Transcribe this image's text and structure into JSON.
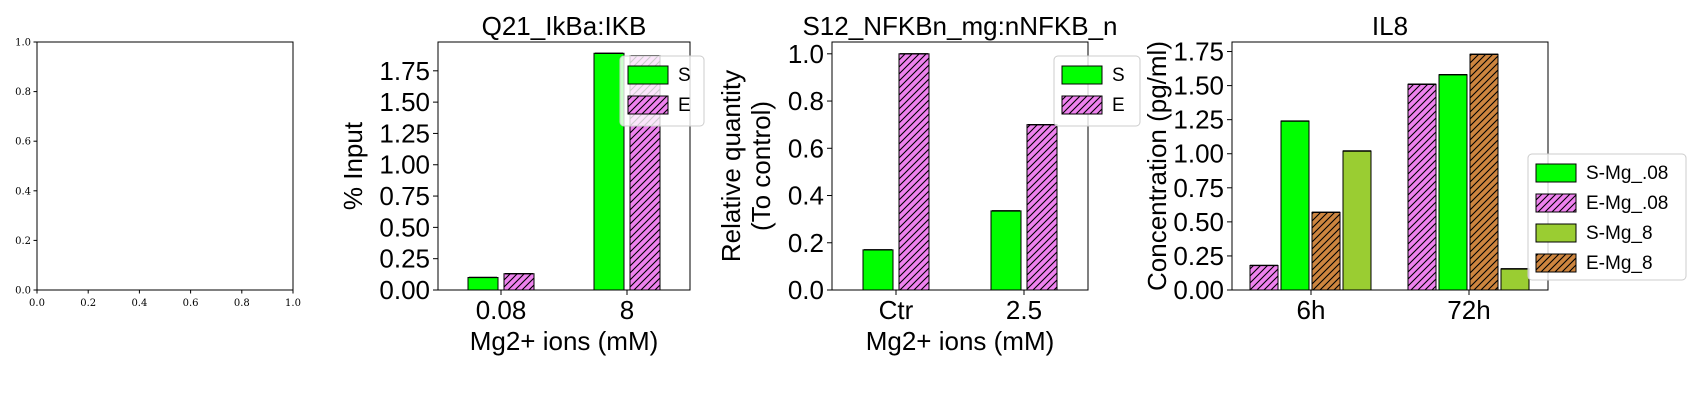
{
  "charts": [
    {
      "id": "empty",
      "type": "empty",
      "xlim": [
        0,
        1
      ],
      "ylim": [
        0,
        1
      ],
      "xticks": [
        "0.0",
        "0.2",
        "0.4",
        "0.6",
        "0.8",
        "1.0"
      ],
      "yticks": [
        "0.0",
        "0.2",
        "0.4",
        "0.6",
        "0.8",
        "1.0"
      ]
    },
    {
      "id": "q21",
      "type": "bar",
      "title": "Q21_IkBa:IKB",
      "xlabel": "Mg2+ ions (mM)",
      "ylabel": "% Input",
      "categories": [
        "0.08",
        "8"
      ],
      "ylim": [
        0,
        1.98
      ],
      "yticks": [
        "0.00",
        "0.25",
        "0.50",
        "0.75",
        "1.00",
        "1.25",
        "1.50",
        "1.75"
      ],
      "legend_position": "upper right",
      "series": [
        {
          "name": "S",
          "values": [
            0.1,
            1.89
          ],
          "color": "#00ff00",
          "hatch": false
        },
        {
          "name": "E",
          "values": [
            0.13,
            1.87
          ],
          "color": "#ee82ee",
          "hatch": true
        }
      ]
    },
    {
      "id": "s12",
      "type": "bar",
      "title": "S12_NFKBn_mg:nNFKB_n",
      "xlabel": "Mg2+ ions (mM)",
      "ylabel": [
        "Relative quantity",
        "(To control)"
      ],
      "categories": [
        "Ctr",
        "2.5"
      ],
      "ylim": [
        0,
        1.05
      ],
      "yticks": [
        "0.0",
        "0.2",
        "0.4",
        "0.6",
        "0.8",
        "1.0"
      ],
      "legend_position": "upper right",
      "series": [
        {
          "name": "S",
          "values": [
            0.17,
            0.335
          ],
          "color": "#00ff00",
          "hatch": false
        },
        {
          "name": "E",
          "values": [
            1.0,
            0.7
          ],
          "color": "#ee82ee",
          "hatch": true
        }
      ]
    },
    {
      "id": "il8",
      "type": "bar",
      "title": "IL8",
      "xlabel": "",
      "ylabel": "Concentration (pg/ml)",
      "categories": [
        "6h",
        "72h"
      ],
      "ylim": [
        0,
        1.82
      ],
      "yticks": [
        "0.00",
        "0.25",
        "0.50",
        "0.75",
        "1.00",
        "1.25",
        "1.50",
        "1.75"
      ],
      "legend_position": "center right",
      "series": [
        {
          "name": "E-Mg_.08",
          "values": [
            0.18,
            1.51
          ],
          "color": "#ee82ee",
          "hatch": true
        },
        {
          "name": "S-Mg_.08",
          "values": [
            1.24,
            1.58
          ],
          "color": "#00ff00",
          "hatch": false
        },
        {
          "name": "E-Mg_8",
          "values": [
            0.57,
            1.73
          ],
          "color": "#cd853f",
          "hatch": true
        },
        {
          "name": "S-Mg_8",
          "values": [
            1.02,
            0.155
          ],
          "color": "#9acd32",
          "hatch": false
        }
      ],
      "legend_order": [
        "S-Mg_.08",
        "E-Mg_.08",
        "S-Mg_8",
        "E-Mg_8"
      ]
    }
  ]
}
